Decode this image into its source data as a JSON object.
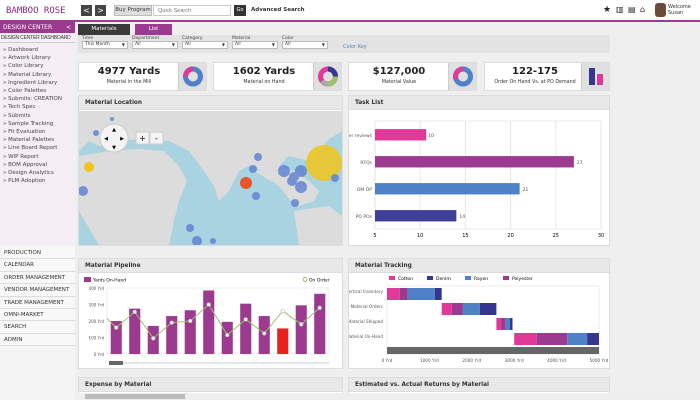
{
  "header": {
    "logo": "BAMBOO ROSE",
    "back": "<",
    "forward": ">",
    "buy_program": "Buy Program",
    "search_placeholder": "Quick Search",
    "go": "Go",
    "advanced_search": "Advanced Search",
    "welcome": "Welcome",
    "user": "Susan",
    "icons": [
      "star-icon",
      "library-icon",
      "folder-icon",
      "home-icon"
    ]
  },
  "sidebar": {
    "title": "DESIGN CENTER",
    "collapse": "<",
    "subtitle": "DESIGN CENTER DASHBOARD",
    "items": [
      "» Dashboard",
      "» Artwork Library",
      "» Color Library",
      "» Material Library",
      "» Ingredient Library",
      "» Color Palettes",
      "» Submits: CREATION",
      "» Tech Spec",
      "» Submits",
      "» Sample Tracking",
      "» Fit Evaluation",
      "» Material Palettes",
      "» Line Board Report",
      "» WIP Report",
      "» BOM Approval",
      "» Design Analytics",
      "» PLM Adoption"
    ],
    "menu": [
      "PRODUCTION",
      "CALENDAR",
      "ORDER MANAGEMENT",
      "VENDOR MANAGEMENT",
      "TRADE MANAGEMENT",
      "OMNI-MARKET",
      "SEARCH",
      "ADMIN"
    ]
  },
  "tabs": [
    {
      "label": "Materials",
      "active": false
    },
    {
      "label": "List",
      "active": true
    }
  ],
  "filters": [
    {
      "label": "Time",
      "value": "This Month"
    },
    {
      "label": "Department",
      "value": "All"
    },
    {
      "label": "Category",
      "value": "All"
    },
    {
      "label": "Material",
      "value": "All"
    },
    {
      "label": "Color",
      "value": "All"
    }
  ],
  "color_key": "Color Key",
  "kpis": [
    {
      "value": "4977 Yards",
      "caption": "Material in the Mill"
    },
    {
      "value": "1602 Yards",
      "caption": "Material on Hand"
    },
    {
      "value": "$127,000",
      "caption": "Material Value"
    },
    {
      "value": "122-175",
      "caption": "Order On Hand Vs. at PO Demand"
    }
  ],
  "colors": {
    "purple": "#9b3a8e",
    "magenta": "#e0399a",
    "blue": "#4f81c7",
    "navy": "#35368f",
    "red": "#e8211f",
    "green": "#9bc26a",
    "gray": "#666666"
  },
  "panels": {
    "map": "Material Location",
    "tasks": "Task List",
    "pipeline": "Material Pipeline",
    "tracking": "Material Tracking",
    "expense": "Expense by Material",
    "returns": "Estimated vs. Actual Returns by Material"
  },
  "chart_data": [
    {
      "type": "bar",
      "orientation": "horizontal",
      "title": "Task List",
      "categories": [
        "Offer reviews",
        "RFQs",
        "OM OP",
        "PO POs"
      ],
      "values": [
        10,
        27,
        21,
        14
      ],
      "colors": [
        "#e0399a",
        "#9b3a8e",
        "#4f81c7",
        "#3f3f98"
      ],
      "xticks": [
        "5",
        "10",
        "15",
        "20",
        "25",
        "30"
      ],
      "xlim": [
        5,
        30
      ],
      "grid": true
    },
    {
      "type": "bar",
      "title": "Material Pipeline",
      "ylim": [
        0,
        400
      ],
      "yticks": [
        "0 Yrd",
        "100 Yrd",
        "200 Yrd",
        "300 Yrd",
        "400 Yrd"
      ],
      "legend": "top",
      "series": [
        {
          "name": "Yards On-Hand",
          "type": "bar",
          "values": [
            200,
            275,
            170,
            230,
            265,
            385,
            195,
            305,
            230,
            155,
            295,
            365
          ],
          "highlight_index": 9
        },
        {
          "name": "On Order",
          "type": "line",
          "values": [
            160,
            255,
            95,
            190,
            200,
            300,
            115,
            210,
            125,
            260,
            180,
            280
          ]
        }
      ]
    },
    {
      "type": "bar",
      "orientation": "horizontal",
      "stacked": true,
      "title": "Material Tracking",
      "categories": [
        "Vertical Inventory",
        "Material Orders",
        "Material Shipped",
        "Material On-Hand"
      ],
      "xlim": [
        0,
        5000
      ],
      "xticks": [
        "0 Yrd",
        "1000 Yrd",
        "2000 Yrd",
        "3000 Yrd",
        "4000 Yrd",
        "5000 Yrd"
      ],
      "legend": "top",
      "series": [
        {
          "name": "Cotton",
          "color": "#e0399a",
          "values": [
            300,
            240,
            120,
            530
          ]
        },
        {
          "name": "Denim",
          "color": "#35368f",
          "values": [
            160,
            390,
            60,
            280
          ]
        },
        {
          "name": "Rayon",
          "color": "#4f81c7",
          "values": [
            640,
            400,
            100,
            470
          ]
        },
        {
          "name": "Polyester",
          "color": "#9b3a8e",
          "values": [
            190,
            260,
            100,
            720
          ]
        }
      ],
      "offsets": [
        0,
        1290,
        2580,
        3000
      ],
      "stack_order": [
        "Cotton",
        "Polyester",
        "Rayon",
        "Denim"
      ]
    }
  ]
}
